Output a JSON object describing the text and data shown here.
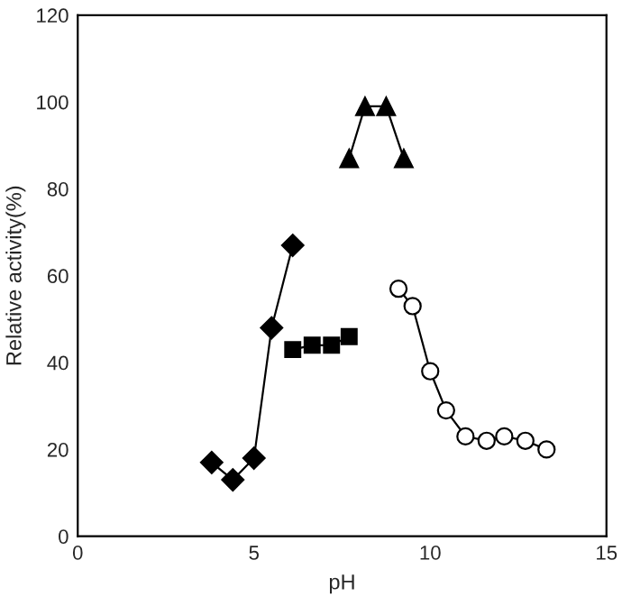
{
  "chart_data": {
    "type": "line",
    "xlabel": "pH",
    "ylabel": "Relative activity(%)",
    "xlim": [
      0,
      15
    ],
    "xticks": [
      0,
      5,
      10,
      15
    ],
    "ylim": [
      0,
      120
    ],
    "yticks": [
      0,
      20,
      40,
      60,
      80,
      100,
      120
    ],
    "grid": false,
    "legend": false,
    "series": [
      {
        "color": "#000000",
        "marker": "diamond",
        "x": [
          3.8,
          4.4,
          5.0,
          5.5,
          6.1
        ],
        "values": [
          17,
          13,
          18,
          48,
          67
        ]
      },
      {
        "color": "#000000",
        "marker": "square",
        "x": [
          6.1,
          6.65,
          7.2,
          7.7
        ],
        "values": [
          43,
          44,
          44,
          46
        ]
      },
      {
        "color": "#000000",
        "marker": "triangle",
        "x": [
          7.7,
          8.15,
          8.75,
          9.25
        ],
        "values": [
          87,
          99,
          99,
          87
        ]
      },
      {
        "color": "#000000",
        "marker": "circle",
        "x": [
          9.1,
          9.5,
          10.0,
          10.45,
          11.0,
          11.6,
          12.1,
          12.7,
          13.3
        ],
        "values": [
          57,
          53,
          38,
          29,
          23,
          22,
          23,
          22,
          20
        ]
      }
    ]
  }
}
